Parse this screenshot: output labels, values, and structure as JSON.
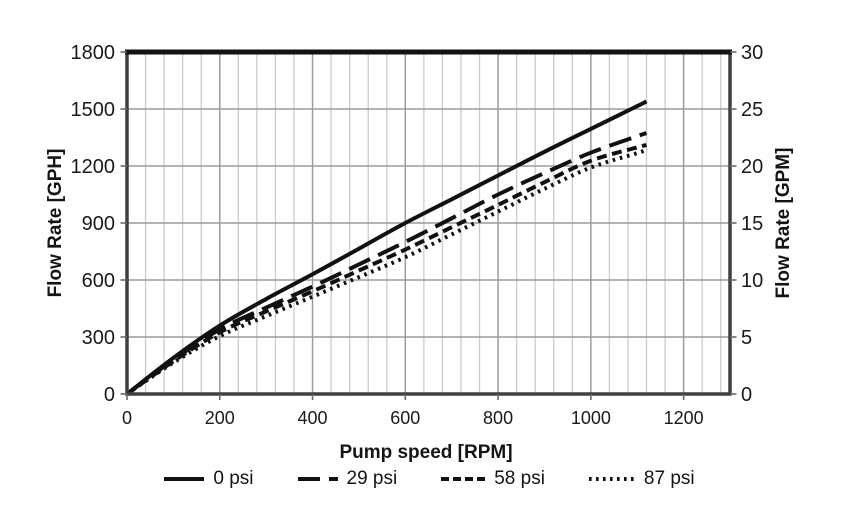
{
  "chart_data": {
    "type": "line",
    "title": "",
    "xlabel": "Pump speed [RPM]",
    "ylabel_left": "Flow Rate [GPH]",
    "ylabel_right": "Flow Rate [GPM]",
    "xlim": [
      0,
      1300
    ],
    "ylim_left": [
      0,
      1800
    ],
    "ylim_right": [
      0,
      30
    ],
    "x_ticks": [
      0,
      200,
      400,
      600,
      800,
      1000,
      1200
    ],
    "x_minor_grid_step": 40,
    "y_left_ticks": [
      0,
      300,
      600,
      900,
      1200,
      1500,
      1800
    ],
    "y_right_ticks": [
      0,
      5,
      10,
      15,
      20,
      25,
      30
    ],
    "grid": "on",
    "legend_position": "bottom",
    "x_rpm": [
      0,
      100,
      200,
      300,
      400,
      500,
      600,
      700,
      800,
      900,
      1000,
      1100,
      1120
    ],
    "series": [
      {
        "name": "0 psi",
        "style": "solid",
        "values_gph": [
          0,
          190,
          360,
          500,
          630,
          765,
          900,
          1025,
          1150,
          1275,
          1395,
          1515,
          1540
        ]
      },
      {
        "name": "29 psi",
        "style": "long-dash",
        "values_gph": [
          0,
          180,
          340,
          455,
          565,
          682,
          800,
          925,
          1050,
          1163,
          1270,
          1357,
          1373
        ]
      },
      {
        "name": "58 psi",
        "style": "dash",
        "values_gph": [
          0,
          172,
          325,
          435,
          540,
          650,
          760,
          878,
          995,
          1115,
          1228,
          1298,
          1310
        ]
      },
      {
        "name": "87 psi",
        "style": "dot",
        "values_gph": [
          0,
          165,
          305,
          410,
          512,
          615,
          720,
          840,
          960,
          1080,
          1192,
          1268,
          1285
        ]
      }
    ],
    "colors": {
      "line": "#111111",
      "grid_minor": "#cbcbcb",
      "grid_major": "#9b9b9b",
      "frame": "#3f3f3f",
      "frame_top": "#121212",
      "tick_mark": "#6a6a6a",
      "text": "#1a1a1a",
      "background": "#ffffff"
    }
  }
}
